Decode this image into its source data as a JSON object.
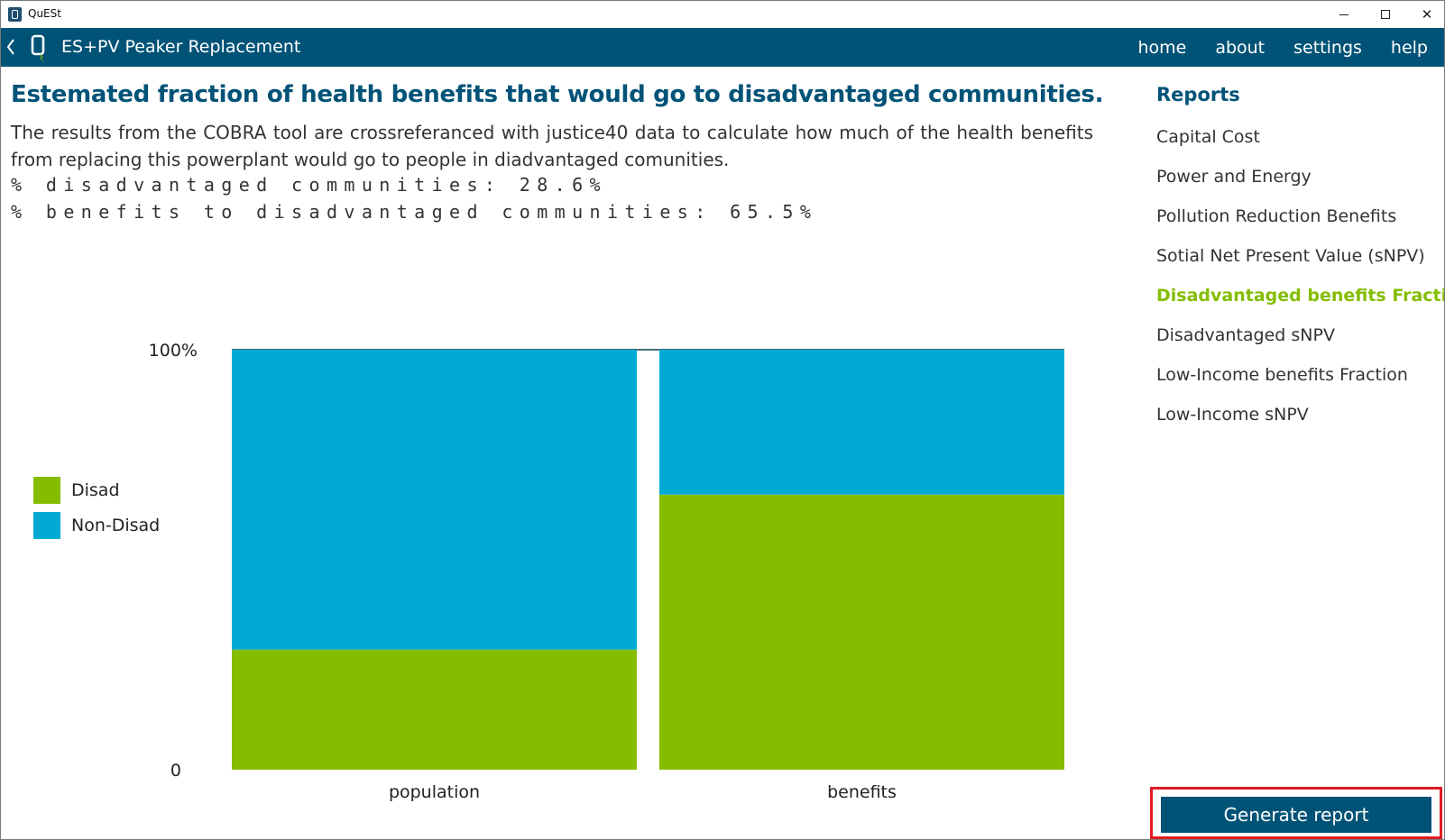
{
  "window": {
    "title": "QuESt"
  },
  "nav": {
    "title": "ES+PV Peaker Replacement",
    "links": [
      "home",
      "about",
      "settings",
      "help"
    ]
  },
  "main": {
    "heading": "Estemated fraction of health benefits that would go to disadvantaged communities.",
    "description": "The results from the COBRA tool are crossreferanced with justice40 data to calculate how much of the health benefits from replacing this powerplant would go to people in diadvantaged comunities.",
    "stat_disadvantaged": "% disadvantaged communities: 28.6%",
    "stat_benefits": "% benefits to disadvantaged communities: 65.5%"
  },
  "sidebar": {
    "heading": "Reports",
    "items": [
      {
        "label": "Capital Cost",
        "active": false
      },
      {
        "label": "Power and Energy",
        "active": false
      },
      {
        "label": "Pollution Reduction Benefits",
        "active": false
      },
      {
        "label": "Sotial Net Present Value (sNPV)",
        "active": false
      },
      {
        "label": "Disadvantaged benefits Fraction",
        "active": true
      },
      {
        "label": "Disadvantaged sNPV",
        "active": false
      },
      {
        "label": "Low-Income benefits Fraction",
        "active": false
      },
      {
        "label": "Low-Income sNPV",
        "active": false
      }
    ],
    "generate_button": "Generate report"
  },
  "colors": {
    "brand": "#005377",
    "disad": "#84bd00",
    "non_disad": "#00aad2",
    "active": "#84bd00"
  },
  "chart_data": {
    "type": "bar",
    "stacked": true,
    "categories": [
      "population",
      "benefits"
    ],
    "series": [
      {
        "name": "Disad",
        "values": [
          28.6,
          65.5
        ]
      },
      {
        "name": "Non-Disad",
        "values": [
          71.4,
          34.5
        ]
      }
    ],
    "ytick_labels": [
      "0",
      "100%"
    ],
    "ylim": [
      0,
      100
    ],
    "legend_position": "left"
  }
}
